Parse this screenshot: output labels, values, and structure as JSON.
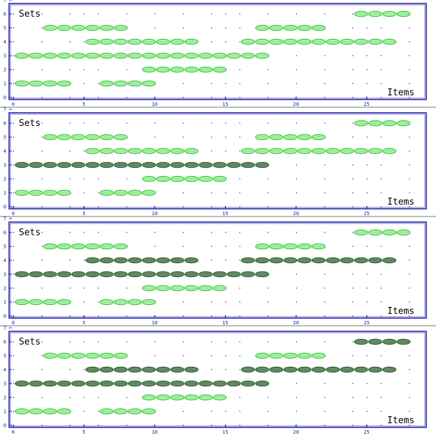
{
  "colors": {
    "frame": "#1a1aa8",
    "tick": "#1a1aa8",
    "grid_dot": "#1a1aa8",
    "oval_light_stroke": "#2fbf2f",
    "oval_light_fill": "#a8f0a8",
    "oval_dark_stroke": "#1c5a1c",
    "oval_dark_fill": "#6a8a6a",
    "label_text": "#000000",
    "tick_label": "#1a1aa8"
  },
  "chart_data": [
    {
      "type": "scatter",
      "title": "",
      "ylabel": "Sets",
      "xlabel": "Items",
      "xlim": [
        0,
        29
      ],
      "ylim": [
        0,
        7
      ],
      "xticks": [
        "0",
        "5",
        "10",
        "15",
        "20",
        "25"
      ],
      "yticks": [
        "0",
        "1",
        "2",
        "3",
        "4",
        "5",
        "6",
        "7"
      ],
      "grid": "dotted",
      "rows": [
        {
          "set": 1,
          "segments": [
            {
              "from": 1,
              "to": 4,
              "style": "light"
            },
            {
              "from": 7,
              "to": 10,
              "style": "light"
            }
          ]
        },
        {
          "set": 2,
          "segments": [
            {
              "from": 10,
              "to": 15,
              "style": "light"
            }
          ]
        },
        {
          "set": 3,
          "segments": [
            {
              "from": 1,
              "to": 18,
              "style": "light"
            }
          ]
        },
        {
          "set": 4,
          "segments": [
            {
              "from": 6,
              "to": 13,
              "style": "light"
            },
            {
              "from": 17,
              "to": 27,
              "style": "light"
            }
          ]
        },
        {
          "set": 5,
          "segments": [
            {
              "from": 3,
              "to": 8,
              "style": "light"
            },
            {
              "from": 18,
              "to": 22,
              "style": "light"
            }
          ]
        },
        {
          "set": 6,
          "segments": [
            {
              "from": 25,
              "to": 28,
              "style": "light"
            }
          ]
        }
      ]
    },
    {
      "type": "scatter",
      "title": "",
      "ylabel": "Sets",
      "xlabel": "Items",
      "xlim": [
        0,
        29
      ],
      "ylim": [
        0,
        7
      ],
      "xticks": [
        "0",
        "5",
        "10",
        "15",
        "20",
        "25"
      ],
      "yticks": [
        "0",
        "1",
        "2",
        "3",
        "4",
        "5",
        "6",
        "7"
      ],
      "grid": "dotted",
      "rows": [
        {
          "set": 1,
          "segments": [
            {
              "from": 1,
              "to": 4,
              "style": "light"
            },
            {
              "from": 7,
              "to": 10,
              "style": "light"
            }
          ]
        },
        {
          "set": 2,
          "segments": [
            {
              "from": 10,
              "to": 15,
              "style": "light"
            }
          ]
        },
        {
          "set": 3,
          "segments": [
            {
              "from": 1,
              "to": 18,
              "style": "dark"
            }
          ]
        },
        {
          "set": 4,
          "segments": [
            {
              "from": 6,
              "to": 13,
              "style": "light"
            },
            {
              "from": 17,
              "to": 27,
              "style": "light"
            }
          ]
        },
        {
          "set": 5,
          "segments": [
            {
              "from": 3,
              "to": 8,
              "style": "light"
            },
            {
              "from": 18,
              "to": 22,
              "style": "light"
            }
          ]
        },
        {
          "set": 6,
          "segments": [
            {
              "from": 25,
              "to": 28,
              "style": "light"
            }
          ]
        }
      ]
    },
    {
      "type": "scatter",
      "title": "",
      "ylabel": "Sets",
      "xlabel": "Items",
      "xlim": [
        0,
        29
      ],
      "ylim": [
        0,
        7
      ],
      "xticks": [
        "0",
        "5",
        "10",
        "15",
        "20",
        "25"
      ],
      "yticks": [
        "0",
        "1",
        "2",
        "3",
        "4",
        "5",
        "6",
        "7"
      ],
      "grid": "dotted",
      "rows": [
        {
          "set": 1,
          "segments": [
            {
              "from": 1,
              "to": 4,
              "style": "light"
            },
            {
              "from": 7,
              "to": 10,
              "style": "light"
            }
          ]
        },
        {
          "set": 2,
          "segments": [
            {
              "from": 10,
              "to": 15,
              "style": "light"
            }
          ]
        },
        {
          "set": 3,
          "segments": [
            {
              "from": 1,
              "to": 18,
              "style": "dark"
            }
          ]
        },
        {
          "set": 4,
          "segments": [
            {
              "from": 6,
              "to": 13,
              "style": "dark"
            },
            {
              "from": 17,
              "to": 27,
              "style": "dark"
            }
          ]
        },
        {
          "set": 5,
          "segments": [
            {
              "from": 3,
              "to": 8,
              "style": "light"
            },
            {
              "from": 18,
              "to": 22,
              "style": "light"
            }
          ]
        },
        {
          "set": 6,
          "segments": [
            {
              "from": 25,
              "to": 28,
              "style": "light"
            }
          ]
        }
      ]
    },
    {
      "type": "scatter",
      "title": "",
      "ylabel": "Sets",
      "xlabel": "Items",
      "xlim": [
        0,
        29
      ],
      "ylim": [
        0,
        7
      ],
      "xticks": [
        "0",
        "5",
        "10",
        "15",
        "20",
        "25"
      ],
      "yticks": [
        "0",
        "1",
        "2",
        "3",
        "4",
        "5",
        "6",
        "7"
      ],
      "grid": "dotted",
      "rows": [
        {
          "set": 1,
          "segments": [
            {
              "from": 1,
              "to": 4,
              "style": "light"
            },
            {
              "from": 7,
              "to": 10,
              "style": "light"
            }
          ]
        },
        {
          "set": 2,
          "segments": [
            {
              "from": 10,
              "to": 15,
              "style": "light"
            }
          ]
        },
        {
          "set": 3,
          "segments": [
            {
              "from": 1,
              "to": 18,
              "style": "dark"
            }
          ]
        },
        {
          "set": 4,
          "segments": [
            {
              "from": 6,
              "to": 13,
              "style": "dark"
            },
            {
              "from": 17,
              "to": 27,
              "style": "dark"
            }
          ]
        },
        {
          "set": 5,
          "segments": [
            {
              "from": 3,
              "to": 8,
              "style": "light"
            },
            {
              "from": 18,
              "to": 22,
              "style": "light"
            }
          ]
        },
        {
          "set": 6,
          "segments": [
            {
              "from": 25,
              "to": 28,
              "style": "dark"
            }
          ]
        }
      ]
    }
  ]
}
